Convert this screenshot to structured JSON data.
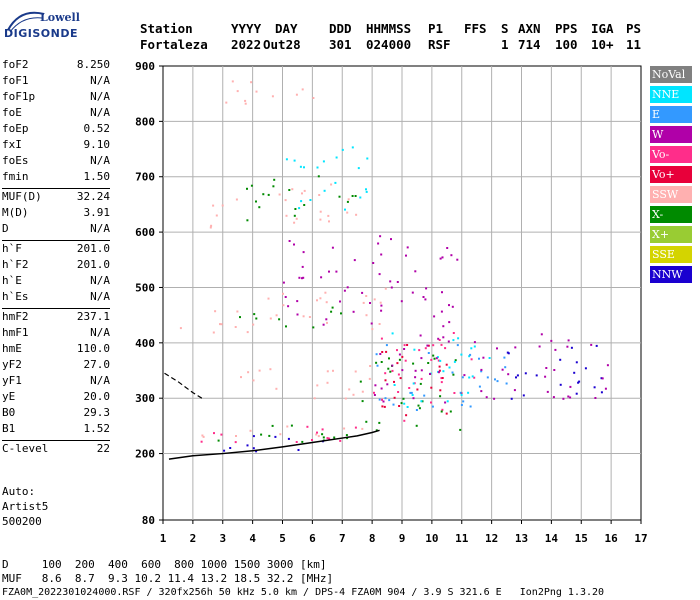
{
  "logo": {
    "line1": "Lowell",
    "line2": "DIGISONDE"
  },
  "header": {
    "labels": [
      "Station",
      "YYYY",
      "DAY",
      "DDD",
      "HHMMSS",
      "P1",
      "FFS",
      "S",
      "AXN",
      "PPS",
      "IGA",
      "PS"
    ],
    "values": [
      "Fortaleza",
      "2022",
      "Out28",
      "301",
      "024000",
      "RSF",
      "1",
      "714",
      "100",
      "10+",
      "11"
    ]
  },
  "params": {
    "group1": [
      {
        "k": "foF2",
        "v": "8.250"
      },
      {
        "k": "foF1",
        "v": "N/A"
      },
      {
        "k": "foF1p",
        "v": "N/A"
      },
      {
        "k": "foE",
        "v": "N/A"
      },
      {
        "k": "foEp",
        "v": "0.52"
      },
      {
        "k": "fxI",
        "v": "9.10"
      },
      {
        "k": "foEs",
        "v": "N/A"
      },
      {
        "k": "fmin",
        "v": "1.50"
      }
    ],
    "group2": [
      {
        "k": "MUF(D)",
        "v": "32.24"
      },
      {
        "k": "M(D)",
        "v": "3.91"
      },
      {
        "k": "D",
        "v": "N/A"
      }
    ],
    "group3": [
      {
        "k": "h`F",
        "v": "201.0"
      },
      {
        "k": "h`F2",
        "v": "201.0"
      },
      {
        "k": "h`E",
        "v": "N/A"
      },
      {
        "k": "h`Es",
        "v": "N/A"
      }
    ],
    "group4": [
      {
        "k": "hmF2",
        "v": "237.1"
      },
      {
        "k": "hmF1",
        "v": "N/A"
      },
      {
        "k": "hmE",
        "v": "110.0"
      },
      {
        "k": "yF2",
        "v": "27.0"
      },
      {
        "k": "yF1",
        "v": "N/A"
      },
      {
        "k": "yE",
        "v": "20.0"
      },
      {
        "k": "B0",
        "v": "29.3"
      },
      {
        "k": "B1",
        "v": "1.52"
      }
    ],
    "group5": [
      {
        "k": "C-level",
        "v": "22"
      }
    ]
  },
  "auto": {
    "line1": "Auto:",
    "line2": "Artist5",
    "line3": "500200"
  },
  "bottom": {
    "d_row": "D     100  200  400  600  800 1000 1500 3000 [km]",
    "muf_row": "MUF   8.6  8.7  9.3 10.2 11.4 13.2 18.5 32.2 [MHz]",
    "footer": "FZA0M_2022301024000.RSF / 320fx256h 50 kHz 5.0 km / DPS-4 FZA0M 904 / 3.9 S 321.6 E   Ion2Png 1.3.20"
  },
  "legend": [
    {
      "label": "NoVal",
      "color": "#808080"
    },
    {
      "label": "NNE",
      "color": "#00e5ff"
    },
    {
      "label": "E",
      "color": "#3399ff"
    },
    {
      "label": "W",
      "color": "#b000a8"
    },
    {
      "label": "Vo-",
      "color": "#ff2d8a"
    },
    {
      "label": "Vo+",
      "color": "#e8003a"
    },
    {
      "label": "SSW",
      "color": "#ffb0b0"
    },
    {
      "label": "X-",
      "color": "#008a00"
    },
    {
      "label": "X+",
      "color": "#99cc33"
    },
    {
      "label": "SSE",
      "color": "#d4d400"
    },
    {
      "label": "NNW",
      "color": "#1a00d0"
    }
  ],
  "chart_data": {
    "type": "scatter",
    "xlim": [
      1,
      17
    ],
    "ylim": [
      80,
      900
    ],
    "x_ticks": [
      1,
      2,
      3,
      4,
      5,
      6,
      7,
      8,
      9,
      10,
      11,
      12,
      13,
      14,
      15,
      16,
      17
    ],
    "y_ticks": [
      80,
      200,
      300,
      400,
      500,
      600,
      700,
      800,
      900
    ],
    "grid": true,
    "legend_position": "right",
    "trace": {
      "name": "",
      "x": [
        1.2,
        2.0,
        3.0,
        4.0,
        5.0,
        6.0,
        7.0,
        7.5,
        8.0,
        8.25
      ],
      "y": [
        190,
        196,
        200,
        205,
        212,
        220,
        228,
        232,
        238,
        242
      ]
    },
    "dashed_trace": {
      "x": [
        1.05,
        1.5,
        2.0,
        2.3
      ],
      "y": [
        345,
        330,
        310,
        300
      ]
    },
    "clusters": [
      {
        "series": "Vo-",
        "x_range": [
          1.5,
          8.3
        ],
        "y_range": [
          205,
          240
        ],
        "slope": 0.006
      },
      {
        "series": "X-",
        "x_range": [
          1.8,
          8.3
        ],
        "y_range": [
          210,
          250
        ],
        "slope": 0.006
      },
      {
        "series": "NNW",
        "x_range": [
          1.5,
          7.5
        ],
        "y_range": [
          200,
          230
        ],
        "slope": 0.005
      },
      {
        "series": "SSW",
        "x_range": [
          2.2,
          8.2
        ],
        "y_range": [
          215,
          245
        ],
        "slope": 0.006
      },
      {
        "series": "Vo-",
        "x_range": [
          8.0,
          11.4
        ],
        "y_range": [
          260,
          420
        ],
        "slope": 0
      },
      {
        "series": "Vo+",
        "x_range": [
          8.0,
          11.2
        ],
        "y_range": [
          270,
          400
        ],
        "slope": 0
      },
      {
        "series": "X-",
        "x_range": [
          7.5,
          11.0
        ],
        "y_range": [
          240,
          380
        ],
        "slope": 0
      },
      {
        "series": "NNE",
        "x_range": [
          8.5,
          12.0
        ],
        "y_range": [
          280,
          420
        ],
        "slope": 0
      },
      {
        "series": "E",
        "x_range": [
          8.0,
          12.5
        ],
        "y_range": [
          280,
          400
        ],
        "slope": 0
      },
      {
        "series": "W",
        "x_range": [
          8.0,
          12.5
        ],
        "y_range": [
          290,
          420
        ],
        "slope": 0
      },
      {
        "series": "NNW",
        "x_range": [
          12.0,
          15.8
        ],
        "y_range": [
          300,
          400
        ],
        "slope": 0
      },
      {
        "series": "W",
        "x_range": [
          12.5,
          16.0
        ],
        "y_range": [
          300,
          420
        ],
        "slope": 0
      },
      {
        "series": "SSW",
        "x_range": [
          3.0,
          8.5
        ],
        "y_range": [
          300,
          360
        ],
        "slope": 0
      },
      {
        "series": "SSW",
        "x_range": [
          1.5,
          8.5
        ],
        "y_range": [
          405,
          480
        ],
        "slope": 0.008
      },
      {
        "series": "X-",
        "x_range": [
          3.0,
          7.0
        ],
        "y_range": [
          420,
          460
        ],
        "slope": 0.006
      },
      {
        "series": "W",
        "x_range": [
          5.0,
          11.0
        ],
        "y_range": [
          430,
          600
        ],
        "slope": 0
      },
      {
        "series": "SSW",
        "x_range": [
          2.5,
          8.0
        ],
        "y_range": [
          605,
          680
        ],
        "slope": 0.01
      },
      {
        "series": "X-",
        "x_range": [
          3.5,
          7.5
        ],
        "y_range": [
          620,
          700
        ],
        "slope": 0.01
      },
      {
        "series": "NNE",
        "x_range": [
          5.0,
          8.0
        ],
        "y_range": [
          640,
          760
        ],
        "slope": 0
      },
      {
        "series": "SSW",
        "x_range": [
          3.0,
          7.0
        ],
        "y_range": [
          830,
          880
        ],
        "slope": 0
      }
    ]
  }
}
